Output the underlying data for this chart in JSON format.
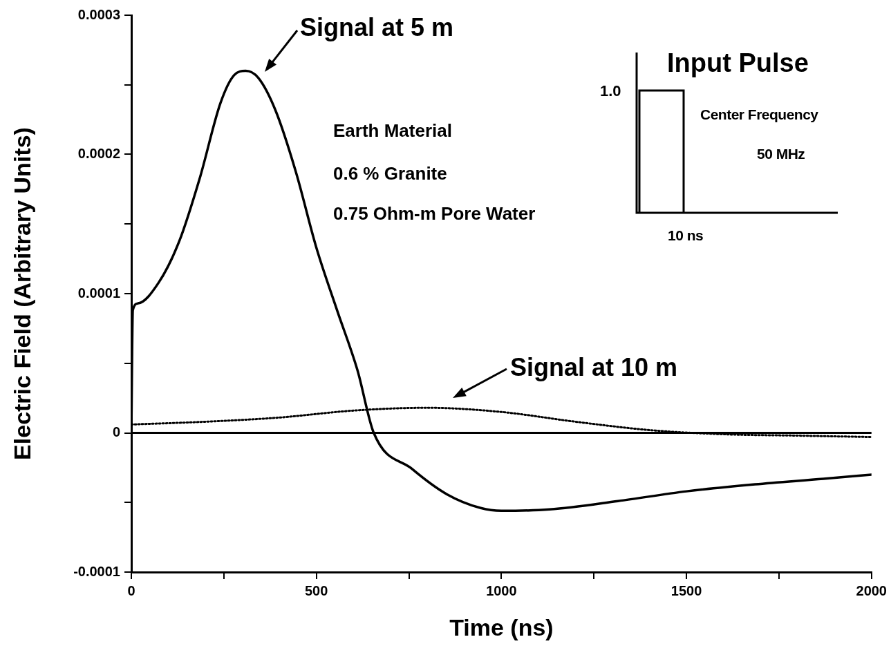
{
  "chart_data": {
    "type": "line",
    "xlabel": "Time (ns)",
    "ylabel": "Electric Field (Arbitrary Units)",
    "xlim": [
      0,
      2000
    ],
    "ylim": [
      -0.0001,
      0.0003
    ],
    "xticks": [
      0,
      {
        "value": 250,
        "label": null
      },
      500,
      {
        "value": 750,
        "label": null
      },
      1000,
      {
        "value": 1250,
        "label": null
      },
      1500,
      {
        "value": 1750,
        "label": null
      },
      2000
    ],
    "yticks": [
      -0.0001,
      {
        "value": -5e-05,
        "label": null
      },
      0,
      {
        "value": 5e-05,
        "label": null
      },
      0.0001,
      {
        "value": 0.00015,
        "label": null
      },
      0.0002,
      {
        "value": 0.00025,
        "label": null
      },
      0.0003
    ],
    "grid": false,
    "legend": false,
    "marker": "none",
    "ref_lines": [
      {
        "axis": "y",
        "value": 0,
        "color": "#000000",
        "line_style": "solid"
      }
    ],
    "series": [
      {
        "color": "#000000",
        "line_style": "solid",
        "x": [
          0,
          4,
          18,
          74,
          130,
          185,
          241,
          278,
          309,
          343,
          389,
          444,
          500,
          556,
          611,
          655,
          759,
          852,
          944,
          1000,
          1130,
          1315,
          1500,
          1685,
          1870,
          2000
        ],
        "values": [
          0,
          8.8e-05,
          9.3e-05,
          0.000108,
          0.000138,
          0.000183,
          0.000237,
          0.000257,
          0.00026,
          0.000255,
          0.000232,
          0.000188,
          0.000133,
          8.8e-05,
          4.5e-05,
          0,
          -2.6e-05,
          -4.4e-05,
          -5.4e-05,
          -5.6e-05,
          -5.5e-05,
          -4.9e-05,
          -4.2e-05,
          -3.7e-05,
          -3.3e-05,
          -3e-05
        ]
      },
      {
        "color": "#000000",
        "line_style": "dotted",
        "x": [
          0,
          200,
          400,
          600,
          800,
          1000,
          1200,
          1400,
          1600,
          1800,
          2000
        ],
        "values": [
          6e-06,
          8e-06,
          1.1e-05,
          1.6e-05,
          1.8e-05,
          1.5e-05,
          8e-06,
          2e-06,
          -1e-06,
          -2e-06,
          -3e-06
        ]
      }
    ],
    "annotations": [
      "Signal at 5 m",
      "Signal at 10 m",
      "Earth Material",
      "0.6 % Granite",
      "0.75 Ohm-m Pore Water",
      "Input Pulse",
      "1.0",
      "Center Frequency",
      "50 MHz",
      "10 ns"
    ]
  }
}
